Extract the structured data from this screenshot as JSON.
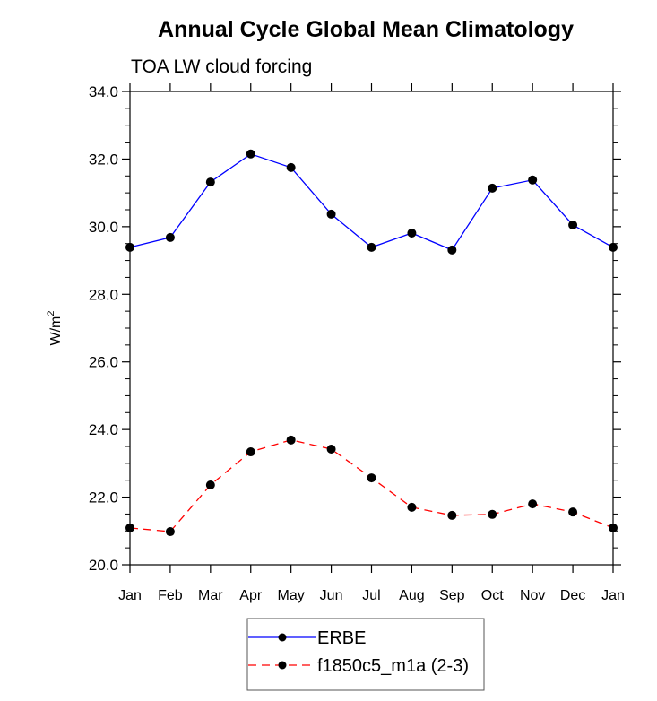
{
  "chart_data": {
    "type": "line",
    "title": "Annual Cycle Global Mean Climatology",
    "subtitle": "TOA LW cloud forcing",
    "xlabel": "",
    "ylabel": "W/m",
    "ylabel_superscript": "2",
    "categories": [
      "Jan",
      "Feb",
      "Mar",
      "Apr",
      "May",
      "Jun",
      "Jul",
      "Aug",
      "Sep",
      "Oct",
      "Nov",
      "Dec",
      "Jan"
    ],
    "ylim": [
      20.0,
      34.0
    ],
    "yticks": [
      20.0,
      22.0,
      24.0,
      26.0,
      28.0,
      30.0,
      32.0,
      34.0
    ],
    "ytick_labels": [
      "20.0",
      "22.0",
      "24.0",
      "26.0",
      "28.0",
      "30.0",
      "32.0",
      "34.0"
    ],
    "grid": false,
    "legend_position": "bottom-center",
    "series": [
      {
        "name": "ERBE",
        "color": "#0000ff",
        "line_style": "solid",
        "marker": "filled-circle",
        "marker_color": "#000000",
        "values": [
          29.39,
          29.68,
          31.32,
          32.15,
          31.75,
          30.37,
          29.39,
          29.81,
          29.31,
          31.14,
          31.38,
          30.05,
          29.39
        ]
      },
      {
        "name": "f1850c5_m1a (2-3)",
        "color": "#ff0000",
        "line_style": "dashed",
        "marker": "filled-circle",
        "marker_color": "#000000",
        "values": [
          21.09,
          20.98,
          22.36,
          23.34,
          23.69,
          23.42,
          22.57,
          21.7,
          21.46,
          21.49,
          21.8,
          21.56,
          21.09
        ]
      }
    ]
  }
}
